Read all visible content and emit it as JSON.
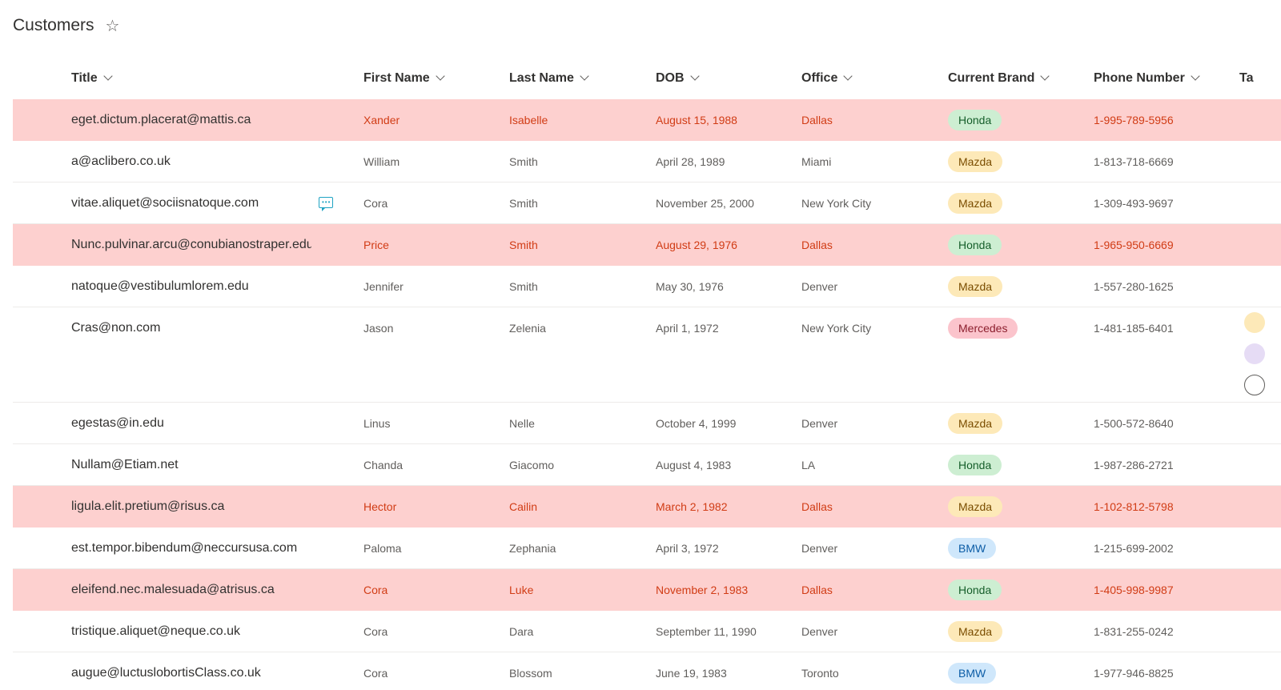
{
  "list": {
    "title": "Customers",
    "favorite_icon": "star-outline-icon"
  },
  "columns": [
    {
      "key": "title",
      "label": "Title"
    },
    {
      "key": "first_name",
      "label": "First Name"
    },
    {
      "key": "last_name",
      "label": "Last Name"
    },
    {
      "key": "dob",
      "label": "DOB"
    },
    {
      "key": "office",
      "label": "Office"
    },
    {
      "key": "brand",
      "label": "Current Brand"
    },
    {
      "key": "phone",
      "label": "Phone Number"
    },
    {
      "key": "tags",
      "label": "Ta"
    }
  ],
  "colors": {
    "highlight_row": "#fdd0cf",
    "highlight_text": "#d13c15",
    "honda": "#cdeed2",
    "mazda": "#fde9b8",
    "mercedes": "#fbc4cc",
    "bmw": "#cfe7fb"
  },
  "rows": [
    {
      "title": "eget.dictum.placerat@mattis.ca",
      "first_name": "Xander",
      "last_name": "Isabelle",
      "dob": "August 15, 1988",
      "office": "Dallas",
      "brand": "Honda",
      "phone": "1-995-789-5956",
      "highlight": true
    },
    {
      "title": "a@aclibero.co.uk",
      "first_name": "William",
      "last_name": "Smith",
      "dob": "April 28, 1989",
      "office": "Miami",
      "brand": "Mazda",
      "phone": "1-813-718-6669",
      "highlight": false
    },
    {
      "title": "vitae.aliquet@sociisnatoque.com",
      "first_name": "Cora",
      "last_name": "Smith",
      "dob": "November 25, 2000",
      "office": "New York City",
      "brand": "Mazda",
      "phone": "1-309-493-9697",
      "highlight": false,
      "has_comment": true
    },
    {
      "title": "Nunc.pulvinar.arcu@conubianostraper.edu",
      "first_name": "Price",
      "last_name": "Smith",
      "dob": "August 29, 1976",
      "office": "Dallas",
      "brand": "Honda",
      "phone": "1-965-950-6669",
      "highlight": true
    },
    {
      "title": "natoque@vestibulumlorem.edu",
      "first_name": "Jennifer",
      "last_name": "Smith",
      "dob": "May 30, 1976",
      "office": "Denver",
      "brand": "Mazda",
      "phone": "1-557-280-1625",
      "highlight": false
    },
    {
      "title": "Cras@non.com",
      "first_name": "Jason",
      "last_name": "Zelenia",
      "dob": "April 1, 1972",
      "office": "New York City",
      "brand": "Mercedes",
      "phone": "1-481-185-6401",
      "highlight": false,
      "tall": true
    },
    {
      "title": "egestas@in.edu",
      "first_name": "Linus",
      "last_name": "Nelle",
      "dob": "October 4, 1999",
      "office": "Denver",
      "brand": "Mazda",
      "phone": "1-500-572-8640",
      "highlight": false
    },
    {
      "title": "Nullam@Etiam.net",
      "first_name": "Chanda",
      "last_name": "Giacomo",
      "dob": "August 4, 1983",
      "office": "LA",
      "brand": "Honda",
      "phone": "1-987-286-2721",
      "highlight": false
    },
    {
      "title": "ligula.elit.pretium@risus.ca",
      "first_name": "Hector",
      "last_name": "Cailin",
      "dob": "March 2, 1982",
      "office": "Dallas",
      "brand": "Mazda",
      "phone": "1-102-812-5798",
      "highlight": true
    },
    {
      "title": "est.tempor.bibendum@neccursusa.com",
      "first_name": "Paloma",
      "last_name": "Zephania",
      "dob": "April 3, 1972",
      "office": "Denver",
      "brand": "BMW",
      "phone": "1-215-699-2002",
      "highlight": false
    },
    {
      "title": "eleifend.nec.malesuada@atrisus.ca",
      "first_name": "Cora",
      "last_name": "Luke",
      "dob": "November 2, 1983",
      "office": "Dallas",
      "brand": "Honda",
      "phone": "1-405-998-9987",
      "highlight": true
    },
    {
      "title": "tristique.aliquet@neque.co.uk",
      "first_name": "Cora",
      "last_name": "Dara",
      "dob": "September 11, 1990",
      "office": "Denver",
      "brand": "Mazda",
      "phone": "1-831-255-0242",
      "highlight": false
    },
    {
      "title": "augue@luctuslobortisClass.co.uk",
      "first_name": "Cora",
      "last_name": "Blossom",
      "dob": "June 19, 1983",
      "office": "Toronto",
      "brand": "BMW",
      "phone": "1-977-946-8825",
      "highlight": false
    }
  ]
}
